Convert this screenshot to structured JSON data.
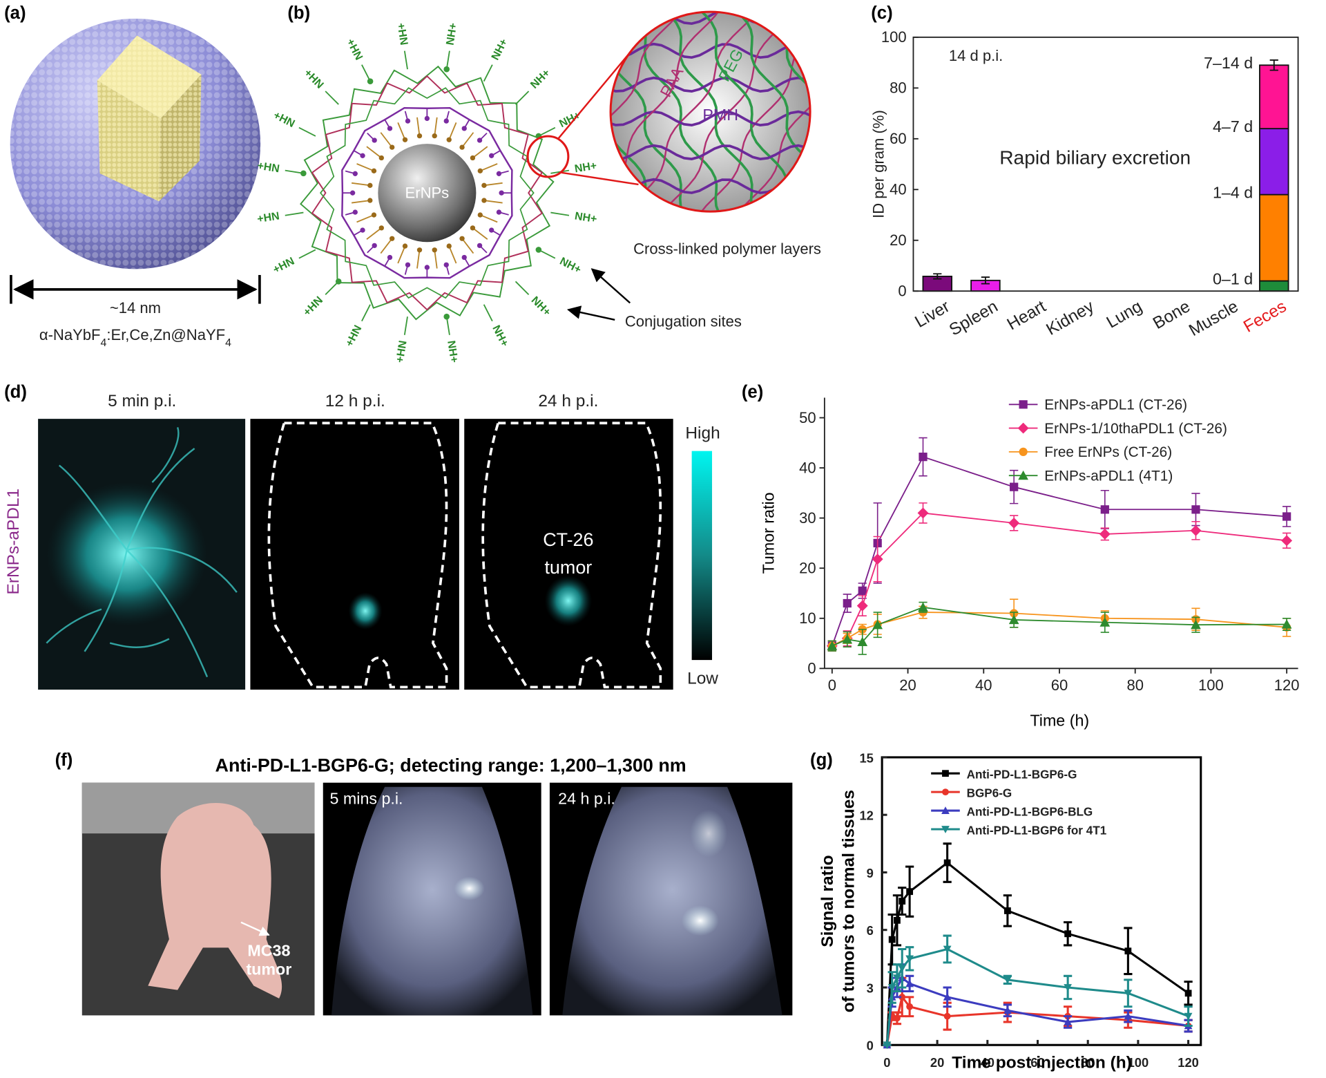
{
  "panels": {
    "a": {
      "label": "(a)",
      "size": "~14 nm",
      "formula": [
        "α-NaYbF",
        "4",
        ":Er,Ce,Zn@NaYF",
        "4"
      ]
    },
    "b": {
      "label": "(b)",
      "core": "ErNPs",
      "polymers": [
        "PAA",
        "PEG",
        "PMH"
      ],
      "amine_right": "NH+",
      "amine_left": "+HN",
      "caption": "Cross-linked polymer layers",
      "sites": "Conjugation sites"
    },
    "d": {
      "label": "(d)",
      "times": [
        "5 min p.i.",
        "12 h p.i.",
        "24 h p.i."
      ],
      "probe": "ErNPs-aPDL1",
      "high": "High",
      "low": "Low",
      "tumor": [
        "CT-26",
        "tumor"
      ]
    },
    "f": {
      "label": "(f)",
      "title": "Anti-PD-L1-BGP6-G; detecting range: 1,200–1,300 nm",
      "times": [
        "5 mins p.i.",
        "24 h p.i."
      ],
      "tumor": [
        "MC38",
        "tumor"
      ]
    }
  },
  "chart_data": [
    {
      "type": "bar",
      "panel_label": "(c)",
      "ylabel": "ID per gram (%)",
      "annotations": [
        "14 d p.i.",
        "Rapid biliary excretion"
      ],
      "categories": [
        "Liver",
        "Spleen",
        "Heart",
        "Kidney",
        "Lung",
        "Bone",
        "Muscle",
        "Feces"
      ],
      "category_colors": [
        "#222222",
        "#222222",
        "#222222",
        "#222222",
        "#222222",
        "#222222",
        "#222222",
        "#e41a1c"
      ],
      "values": [
        5.8,
        4.2,
        null,
        null,
        null,
        null,
        null,
        null
      ],
      "errors": [
        1.0,
        1.3,
        null,
        null,
        null,
        null,
        null,
        null
      ],
      "colors": [
        "#7b0a7b",
        "#e81ee8",
        null,
        null,
        null,
        null,
        null,
        null
      ],
      "series": [
        {
          "name": "0–1 d",
          "color": "#1e8c3a",
          "values": [
            null,
            null,
            null,
            null,
            null,
            null,
            null,
            4
          ]
        },
        {
          "name": "1–4 d",
          "color": "#ff8000",
          "values": [
            null,
            null,
            null,
            null,
            null,
            null,
            null,
            34
          ]
        },
        {
          "name": "4–7 d",
          "color": "#8b1ee8",
          "values": [
            null,
            null,
            null,
            null,
            null,
            null,
            null,
            26
          ]
        },
        {
          "name": "7–14 d",
          "color": "#ff1493",
          "values": [
            null,
            null,
            null,
            null,
            null,
            null,
            null,
            25
          ],
          "errors": [
            null,
            null,
            null,
            null,
            null,
            null,
            null,
            2
          ]
        }
      ],
      "ylim": [
        0,
        100
      ],
      "yticks": [
        0,
        20,
        40,
        60,
        80,
        100
      ]
    },
    {
      "type": "line",
      "panel_label": "(e)",
      "xlabel": "Time (h)",
      "ylabel": "Tumor ratio",
      "frame": false,
      "x": [
        0,
        4,
        8,
        12,
        24,
        48,
        72,
        96,
        120
      ],
      "series": [
        {
          "name": "ErNPs-aPDL1 (CT-26)",
          "color": "#7b1f8a",
          "marker": "square",
          "values": [
            4.5,
            13,
            15.5,
            25,
            42.2,
            36.2,
            31.7,
            31.7,
            30.3
          ],
          "errors": [
            1,
            1.8,
            1.5,
            8,
            3.8,
            3.3,
            3.8,
            3.2,
            2
          ]
        },
        {
          "name": "ErNPs-1/10thaPDL1 (CT-26)",
          "color": "#ee2a7b",
          "marker": "diamond",
          "values": [
            4.5,
            6,
            12.5,
            21.8,
            31,
            29,
            26.8,
            27.5,
            25.5
          ],
          "errors": [
            1,
            1.5,
            2,
            4.5,
            2,
            1.5,
            1.2,
            1.8,
            1.5
          ]
        },
        {
          "name": "Free ErNPs (CT-26)",
          "color": "#f7941d",
          "marker": "circle",
          "values": [
            4.5,
            6,
            7.8,
            8.8,
            11.2,
            11,
            10,
            9.8,
            8.2
          ],
          "errors": [
            1,
            1,
            1,
            2,
            1.2,
            2.8,
            1.5,
            2.2,
            1.8
          ]
        },
        {
          "name": "ErNPs-aPDL1 (4T1)",
          "color": "#2e8b2e",
          "marker": "triangle",
          "values": [
            4.5,
            5.8,
            5.3,
            8.7,
            12.2,
            9.7,
            9.2,
            8.7,
            8.8
          ],
          "errors": [
            1,
            1.5,
            2.5,
            2.5,
            1,
            1.5,
            2,
            1.5,
            1.2
          ]
        }
      ],
      "xlim": [
        -2,
        123
      ],
      "ylim": [
        0,
        54
      ],
      "xticks": [
        0,
        20,
        40,
        60,
        80,
        100,
        120
      ],
      "yticks": [
        0,
        10,
        20,
        30,
        40,
        50
      ]
    },
    {
      "type": "line",
      "panel_label": "(g)",
      "xlabel": "Time post injection (h)",
      "ylabel": [
        "Signal ratio",
        "of tumors to normal tissues"
      ],
      "frame": true,
      "x": [
        0,
        2,
        4,
        6,
        9,
        24,
        48,
        72,
        96,
        120
      ],
      "series": [
        {
          "name": "Anti-PD-L1-BGP6-G",
          "color": "#000000",
          "marker": "square",
          "values": [
            0,
            5.5,
            6.5,
            7.5,
            8,
            9.5,
            7,
            5.8,
            4.9,
            2.7
          ],
          "errors": [
            0,
            1.3,
            1.3,
            0.7,
            1.3,
            1,
            0.8,
            0.6,
            1.2,
            0.6
          ]
        },
        {
          "name": "BGP6-G",
          "color": "#e8352a",
          "marker": "circle",
          "values": [
            0,
            1.5,
            1.4,
            2.5,
            2.0,
            1.5,
            1.7,
            1.5,
            1.3,
            1.0
          ],
          "errors": [
            0,
            0.2,
            0.3,
            1,
            0.5,
            0.7,
            0.5,
            0.5,
            0.4,
            0.3
          ]
        },
        {
          "name": "Anti-PD-L1-BGP6-BLG",
          "color": "#3c3cbf",
          "marker": "triangle",
          "values": [
            0,
            2.5,
            3,
            3.5,
            3.2,
            2.5,
            1.8,
            1.2,
            1.5,
            1.0
          ],
          "errors": [
            0,
            0.5,
            0.5,
            0.7,
            0.4,
            0.5,
            0.3,
            0.3,
            0.3,
            0.3
          ]
        },
        {
          "name": "Anti-PD-L1-BGP6 for 4T1",
          "color": "#1f8b8b",
          "marker": "triangle-down",
          "values": [
            0,
            3,
            3.5,
            4,
            4.5,
            5,
            3.4,
            3,
            2.7,
            1.5
          ],
          "errors": [
            0,
            0.8,
            0.7,
            1,
            0.6,
            0.7,
            0.2,
            0.6,
            0.7,
            0.5
          ]
        }
      ],
      "xlim": [
        -2,
        125
      ],
      "ylim": [
        0,
        15
      ],
      "xticks": [
        0,
        20,
        40,
        60,
        80,
        100,
        120
      ],
      "yticks": [
        0,
        3,
        6,
        9,
        12,
        15
      ]
    }
  ]
}
